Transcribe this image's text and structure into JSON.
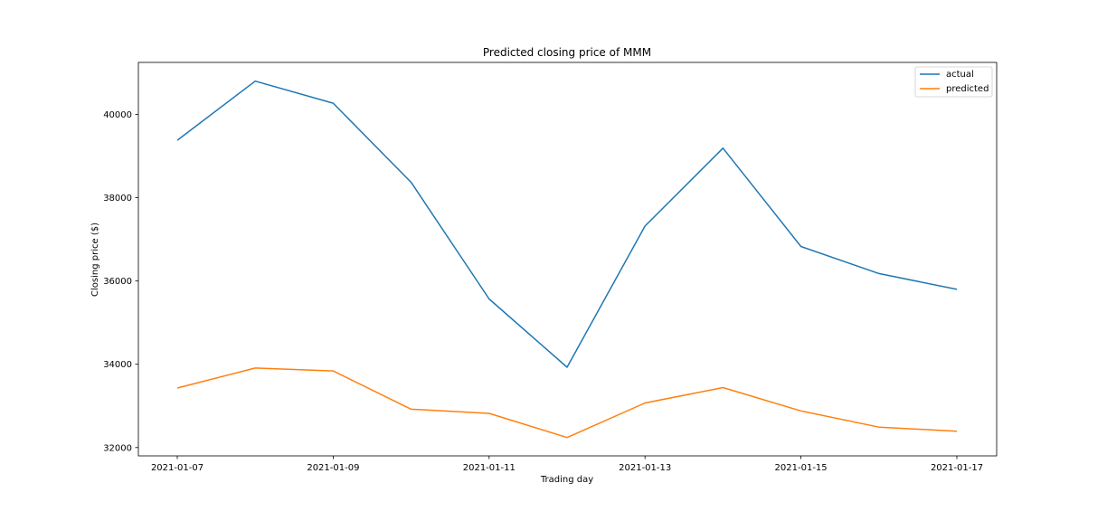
{
  "chart_data": {
    "type": "line",
    "title": "Predicted closing price of MMM",
    "xlabel": "Trading day",
    "ylabel": "Closing price ($)",
    "x": [
      "2021-01-07",
      "2021-01-08",
      "2021-01-09",
      "2021-01-10",
      "2021-01-11",
      "2021-01-12",
      "2021-01-13",
      "2021-01-14",
      "2021-01-15",
      "2021-01-16",
      "2021-01-17"
    ],
    "xticks": [
      "2021-01-07",
      "2021-01-09",
      "2021-01-11",
      "2021-01-13",
      "2021-01-15",
      "2021-01-17"
    ],
    "yticks": [
      32000,
      34000,
      36000,
      38000,
      40000
    ],
    "ylim": [
      31800,
      41250
    ],
    "grid": false,
    "legend_position": "top-right",
    "series": [
      {
        "name": "actual",
        "color": "#1f77b4",
        "values": [
          39380,
          40800,
          40270,
          38370,
          35570,
          33930,
          37320,
          39190,
          36830,
          36180,
          35800
        ]
      },
      {
        "name": "predicted",
        "color": "#ff7f0e",
        "values": [
          33430,
          33910,
          33840,
          32920,
          32820,
          32240,
          33070,
          33440,
          32880,
          32490,
          32390
        ]
      }
    ]
  }
}
